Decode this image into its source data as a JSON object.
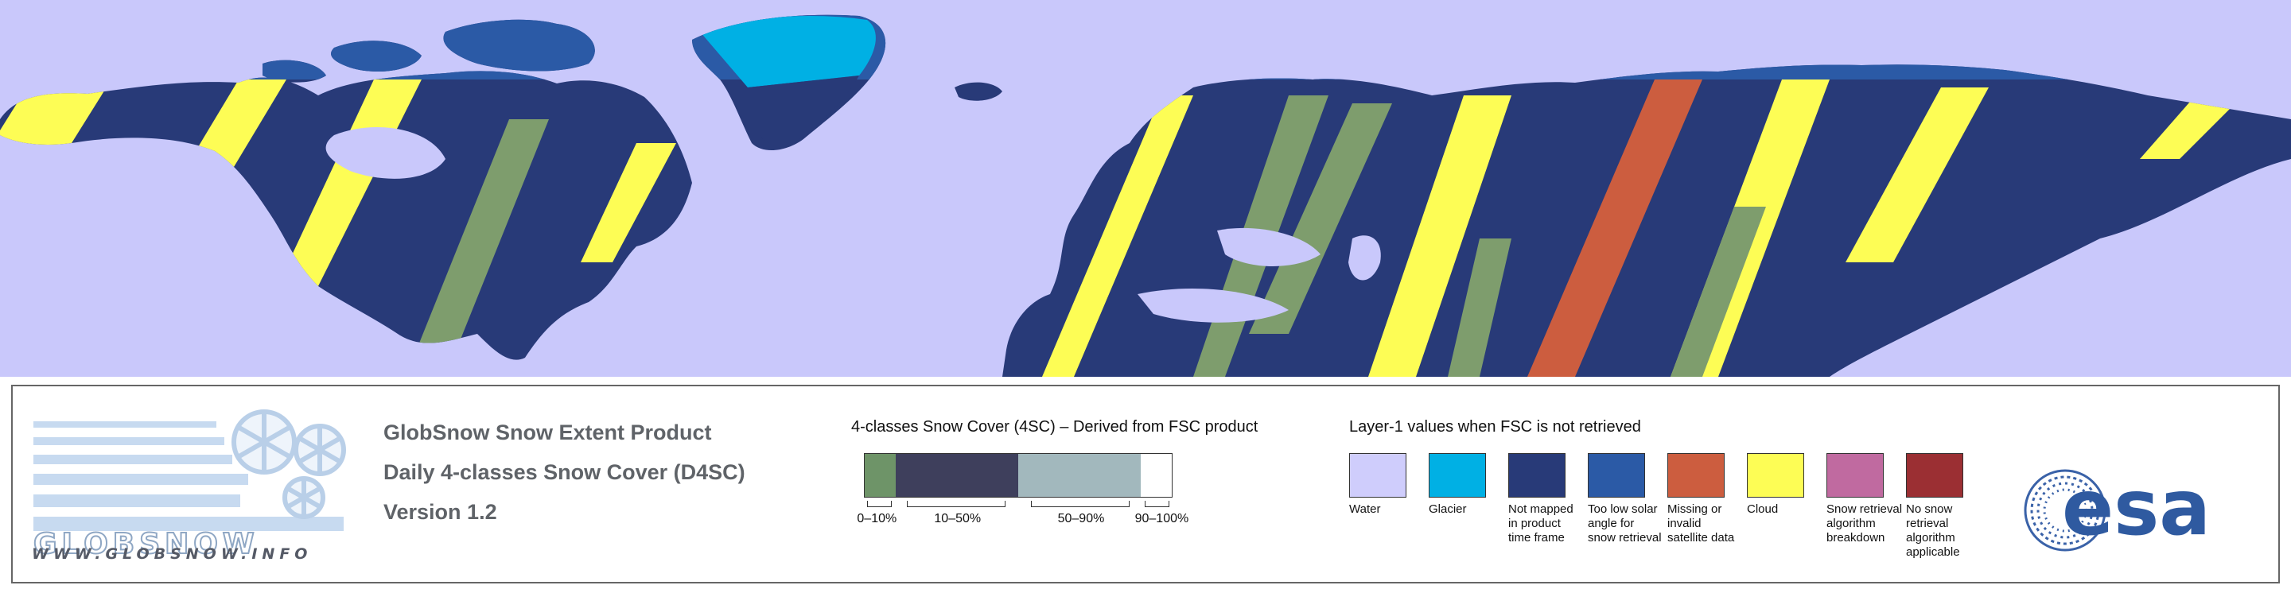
{
  "map": {
    "colors": {
      "water": "#c9c8fb",
      "not_mapped": "#283a78",
      "snow": "#7e9d6d",
      "cloud": "#fdfd55",
      "missing": "#cc5d3f",
      "low_sun": "#2b5aa6",
      "glacier": "#00b0e4"
    }
  },
  "logo": {
    "text": "GLOBSNOW",
    "url": "WWW.GLOBSNOW.INFO"
  },
  "titles": [
    "GlobSnow Snow Extent Product",
    "Daily 4-classes Snow Cover (D4SC)",
    "Version 1.2"
  ],
  "scale": {
    "title": "4-classes Snow Cover (4SC) – Derived from FSC product",
    "segments": [
      {
        "label": "0–10%",
        "color": "#6e9468",
        "from": 0,
        "to": 10
      },
      {
        "label": "10–50%",
        "color": "#3e3f5c",
        "from": 10,
        "to": 50
      },
      {
        "label": "50–90%",
        "color": "#a2b8bd",
        "from": 50,
        "to": 90
      },
      {
        "label": "90–100%",
        "color": "#ffffff",
        "from": 90,
        "to": 100
      }
    ]
  },
  "legend": {
    "title": "Layer-1 values when FSC is not retrieved",
    "items": [
      {
        "label": "Water",
        "color": "#cfcdfc"
      },
      {
        "label": "Glacier",
        "color": "#00b0e4"
      },
      {
        "label": "Not mapped in product time frame",
        "color": "#283a78"
      },
      {
        "label": "Too low solar angle for snow retrieval",
        "color": "#2b5aa6"
      },
      {
        "label": "Missing or invalid satellite data",
        "color": "#cc5d3f"
      },
      {
        "label": "Cloud",
        "color": "#fdfd55"
      },
      {
        "label": "Snow retrieval algorithm breakdown",
        "color": "#c06aa0"
      },
      {
        "label": "No snow retrieval algorithm applicable",
        "color": "#9b2f33"
      }
    ]
  },
  "esa_logo": {
    "text": "esa"
  }
}
